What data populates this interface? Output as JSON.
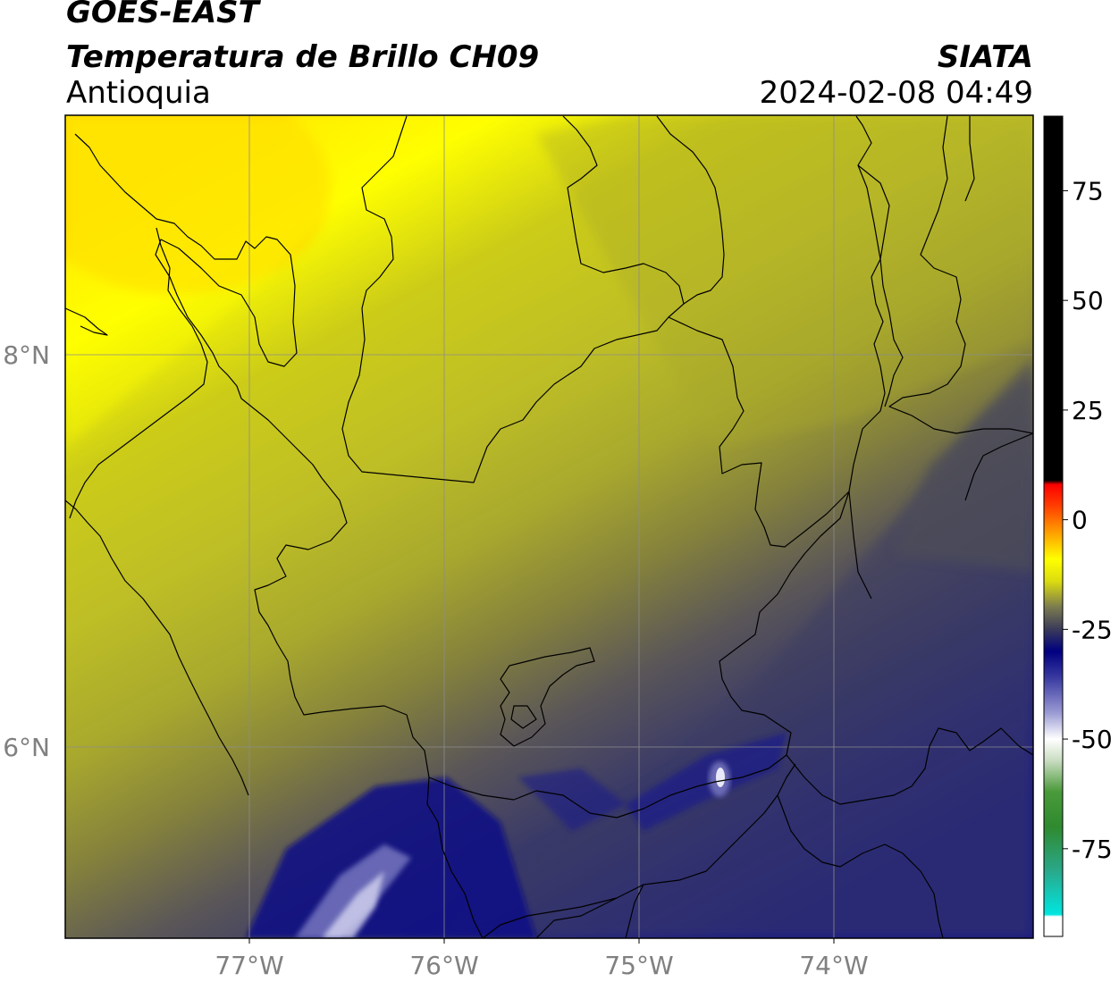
{
  "header": {
    "satellite": "GOES-EAST",
    "product": "Temperatura de Brillo CH09",
    "region": "Antioquia",
    "organization": "SIATA",
    "timestamp": "2024-02-08 04:49"
  },
  "map": {
    "lon_range": [
      -77.95,
      -72.98
    ],
    "lat_range": [
      5.0,
      9.2
    ],
    "lon_ticks": [
      {
        "value": -77,
        "label": "77°W"
      },
      {
        "value": -76,
        "label": "76°W"
      },
      {
        "value": -75,
        "label": "75°W"
      },
      {
        "value": -74,
        "label": "74°W"
      }
    ],
    "lat_ticks": [
      {
        "value": 8,
        "label": "8°N"
      },
      {
        "value": 6,
        "label": "6°N"
      }
    ],
    "gridlines": true
  },
  "colorbar": {
    "range": [
      -95,
      92
    ],
    "ticks": [
      {
        "value": 75,
        "label": "75"
      },
      {
        "value": 50,
        "label": "50"
      },
      {
        "value": 25,
        "label": "25"
      },
      {
        "value": 0,
        "label": "0"
      },
      {
        "value": -25,
        "label": "-25"
      },
      {
        "value": -50,
        "label": "-50"
      },
      {
        "value": -75,
        "label": "-75"
      }
    ],
    "stops": [
      {
        "value": -95,
        "color": "#ffffff"
      },
      {
        "value": -90.5,
        "color": "#ffffff"
      },
      {
        "value": -90,
        "color": "#00e6e0"
      },
      {
        "value": -80,
        "color": "#2aa88a"
      },
      {
        "value": -70,
        "color": "#2f8a2f"
      },
      {
        "value": -62,
        "color": "#4a9a3a"
      },
      {
        "value": -55,
        "color": "#c8dcc0"
      },
      {
        "value": -50,
        "color": "#ffffff"
      },
      {
        "value": -44,
        "color": "#9a9ad4"
      },
      {
        "value": -36,
        "color": "#3a3aa0"
      },
      {
        "value": -30,
        "color": "#000080"
      },
      {
        "value": -25,
        "color": "#3a3a5a"
      },
      {
        "value": -20,
        "color": "#7a7a50"
      },
      {
        "value": -14,
        "color": "#dcdc10"
      },
      {
        "value": -9,
        "color": "#ffff00"
      },
      {
        "value": -3,
        "color": "#ffa000"
      },
      {
        "value": 3,
        "color": "#ff4000"
      },
      {
        "value": 8,
        "color": "#ff0000"
      },
      {
        "value": 9,
        "color": "#000000"
      },
      {
        "value": 92,
        "color": "#000000"
      }
    ]
  },
  "colors": {
    "yellow": "#fff000",
    "olive": "#c2c21e",
    "dark_olive": "#7e7b3a",
    "slate": "#4a4a5a",
    "navy_gray": "#3a3a66",
    "navy": "#10108a"
  }
}
